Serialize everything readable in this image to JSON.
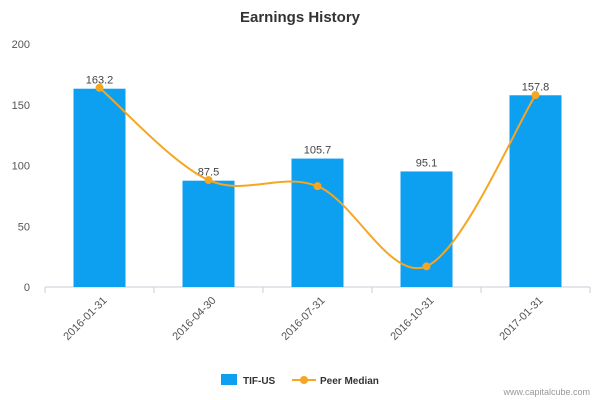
{
  "chart_data": {
    "type": "bar",
    "title": "Earnings History",
    "categories": [
      "2016-01-31",
      "2016-04-30",
      "2016-07-31",
      "2016-10-31",
      "2017-01-31"
    ],
    "ylim": [
      0,
      200
    ],
    "yticks": [
      "0",
      "50",
      "100",
      "150",
      "200"
    ],
    "grid": false,
    "legend_position": "bottom",
    "series": [
      {
        "name": "TIF-US",
        "type": "bar",
        "color": "#0d9ff0",
        "values": [
          163.2,
          87.5,
          105.7,
          95.1,
          157.8
        ],
        "labels": [
          "163.2",
          "87.5",
          "105.7",
          "95.1",
          "157.8"
        ]
      },
      {
        "name": "Peer Median",
        "type": "line",
        "color": "#f5a623",
        "values": [
          164,
          88,
          83,
          17,
          158
        ]
      }
    ]
  },
  "credit": "www.capitalcube.com"
}
